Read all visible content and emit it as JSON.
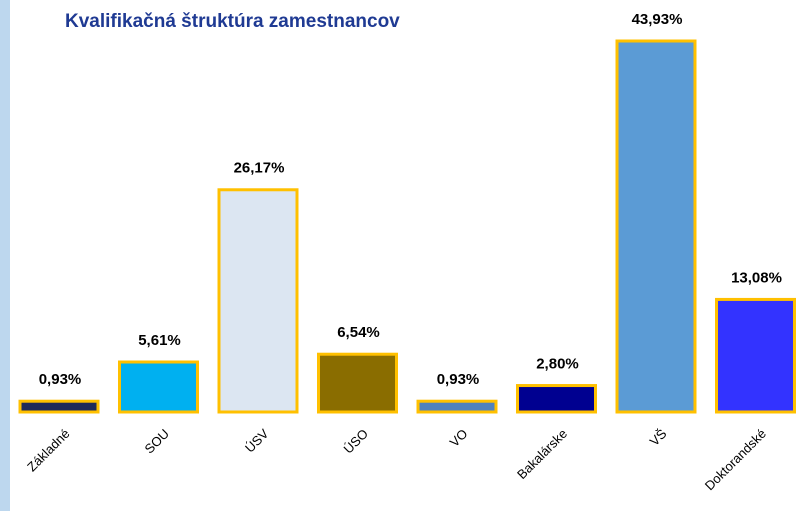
{
  "chart_data": {
    "type": "bar",
    "title": "Kvalifikačná štruktúra zamestnancov",
    "categories": [
      "Základné",
      "SOU",
      "ÚSV",
      "ÚSO",
      "VO",
      "Bakalárske",
      "VŠ",
      "Doktorandské"
    ],
    "values": [
      0.93,
      5.61,
      26.17,
      6.54,
      0.93,
      2.8,
      43.93,
      13.08
    ],
    "value_labels": [
      "0,93%",
      "5,61%",
      "26,17%",
      "6,54%",
      "0,93%",
      "2,80%",
      "43,93%",
      "13,08%"
    ],
    "colors": [
      "#1f2a5a",
      "#00b0f0",
      "#dce6f2",
      "#8a6d00",
      "#4f81bd",
      "#000090",
      "#5b9bd5",
      "#3333ff"
    ],
    "border_color": "#ffc000"
  }
}
